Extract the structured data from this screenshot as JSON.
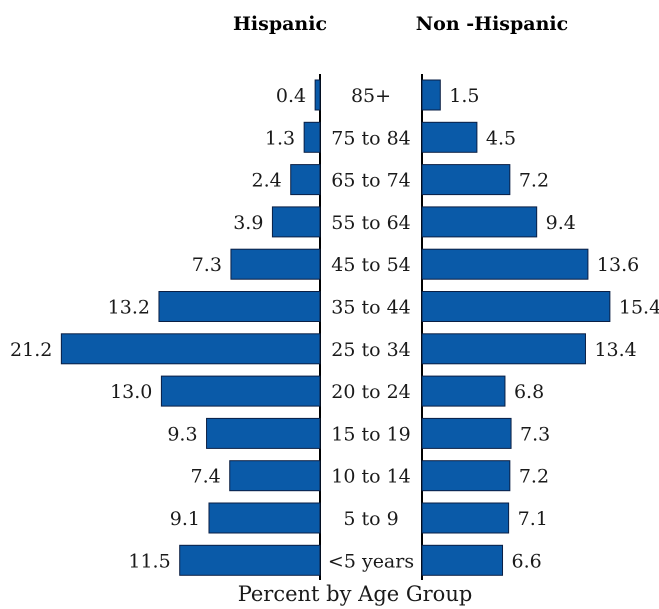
{
  "chart_data": {
    "type": "bar",
    "orientation": "horizontal-population-pyramid",
    "categories": [
      "85+",
      "75 to 84",
      "65 to 74",
      "55 to 64",
      "45 to 54",
      "35 to 44",
      "25 to 34",
      "20 to 24",
      "15 to 19",
      "10 to 14",
      "5 to 9",
      "<5 years"
    ],
    "series": [
      {
        "name": "Hispanic",
        "side": "left",
        "values": [
          0.4,
          1.3,
          2.4,
          3.9,
          7.3,
          13.2,
          21.2,
          13.0,
          9.3,
          7.4,
          9.1,
          11.5
        ],
        "labels": [
          "0.4",
          "1.3",
          "2.4",
          "3.9",
          "7.3",
          "13.2",
          "21.2",
          "13.0",
          "9.3",
          "7.4",
          "9.1",
          "11.5"
        ]
      },
      {
        "name": "Non -Hispanic",
        "side": "right",
        "values": [
          1.5,
          4.5,
          7.2,
          9.4,
          13.6,
          15.4,
          13.4,
          6.8,
          7.3,
          7.2,
          7.1,
          6.6
        ],
        "labels": [
          "1.5",
          "4.5",
          "7.2",
          "9.4",
          "13.6",
          "15.4",
          "13.4",
          "6.8",
          "7.3",
          "7.2",
          "7.1",
          "6.6"
        ]
      }
    ],
    "xlabel": "Percent by Age Group",
    "bar_color": "#0a5aa8",
    "legend": "none",
    "grid": false
  }
}
